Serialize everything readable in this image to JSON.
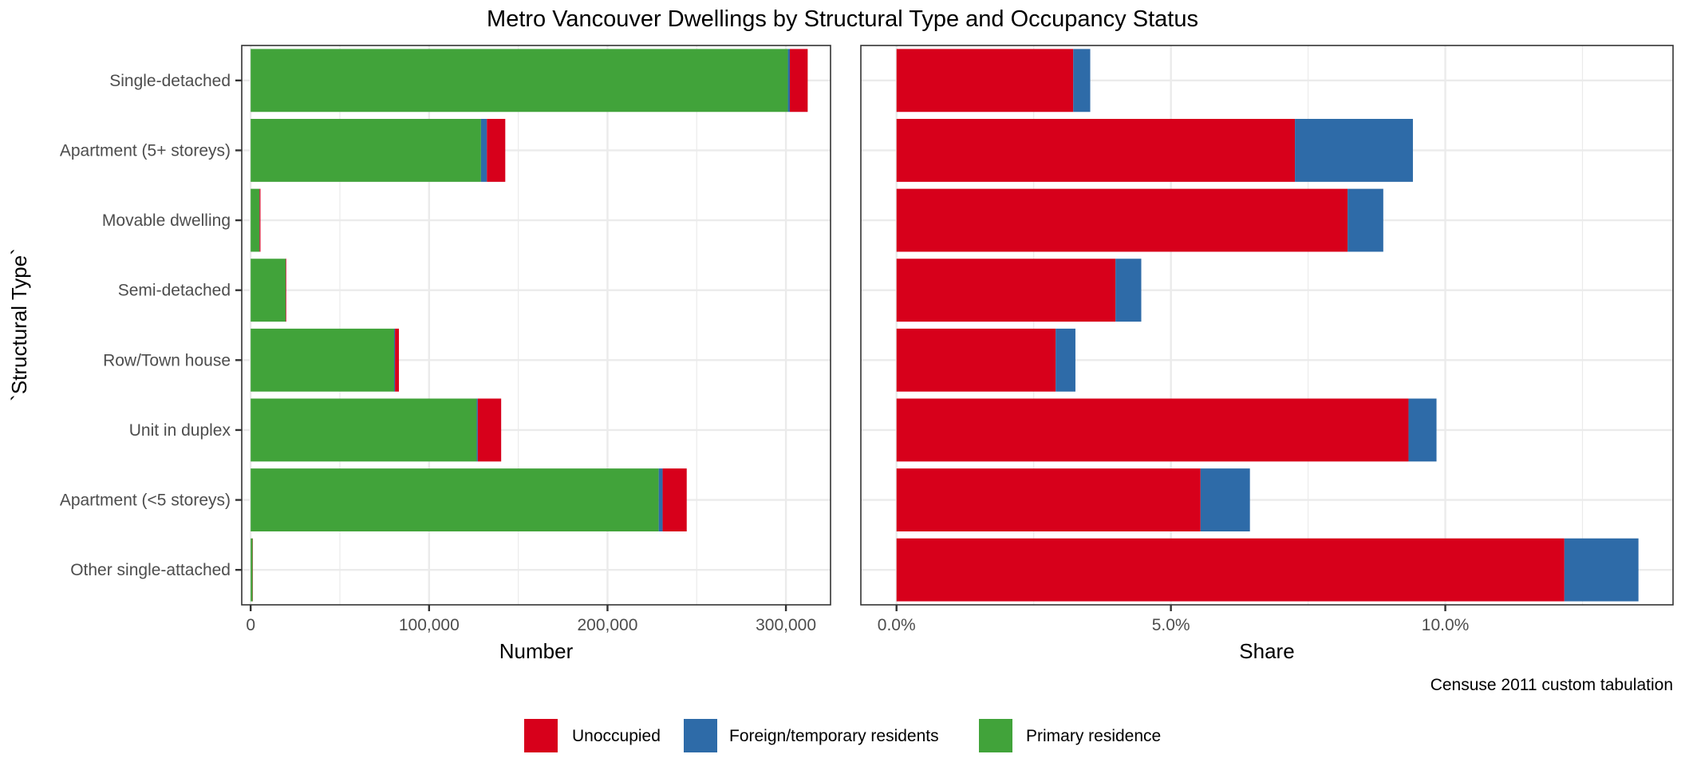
{
  "chart_data": {
    "type": "bar",
    "orientation": "horizontal",
    "stacked": true,
    "title": "Metro Vancouver Dwellings by Structural Type and Occupancy Status",
    "ylabel": "`Structural Type`",
    "caption": "Censuse 2011 custom tabulation",
    "categories": [
      "Single-detached",
      "Apartment (5+ storeys)",
      "Movable dwelling",
      "Semi-detached",
      "Row/Town house",
      "Unit in duplex",
      "Apartment (<5 storeys)",
      "Other single-attached"
    ],
    "legend": {
      "position": "bottom",
      "items": [
        {
          "name": "Unoccupied",
          "color": "#D7001B"
        },
        {
          "name": "Foreign/temporary residents",
          "color": "#2E6BA8"
        },
        {
          "name": "Primary residence",
          "color": "#41A33A"
        }
      ]
    },
    "panels": [
      {
        "name": "number",
        "xlabel": "Number",
        "xlim": [
          -5000,
          325000
        ],
        "xticks": [
          0,
          100000,
          200000,
          300000
        ],
        "xtick_labels": [
          "0",
          "100,000",
          "200,000",
          "300,000"
        ],
        "minor_xticks": [
          50000,
          150000,
          250000
        ],
        "stack_order": [
          "Primary residence",
          "Foreign/temporary residents",
          "Unoccupied"
        ],
        "series": [
          {
            "name": "Primary residence",
            "values": [
              301100,
              129100,
              4900,
              19600,
              80400,
              126700,
              228700,
              1100
            ]
          },
          {
            "name": "Foreign/temporary residents",
            "values": [
              1100,
              3300,
              100,
              100,
              500,
              600,
              2200,
              20
            ]
          },
          {
            "name": "Unoccupied",
            "values": [
              10000,
              10300,
              500,
              300,
              2200,
              13100,
              13500,
              150
            ]
          }
        ]
      },
      {
        "name": "share",
        "xlabel": "Share",
        "xlim": [
          -0.0065,
          0.1415
        ],
        "xticks": [
          0.0,
          0.05,
          0.1
        ],
        "xtick_labels": [
          "0.0%",
          "5.0%",
          "10.0%"
        ],
        "minor_xticks": [
          0.025,
          0.075,
          0.125
        ],
        "stack_order": [
          "Unoccupied",
          "Foreign/temporary residents"
        ],
        "series": [
          {
            "name": "Unoccupied",
            "values": [
              0.0322,
              0.0726,
              0.0822,
              0.0399,
              0.029,
              0.0933,
              0.0554,
              0.1217
            ]
          },
          {
            "name": "Foreign/temporary residents",
            "values": [
              0.0031,
              0.0215,
              0.0065,
              0.0047,
              0.0036,
              0.0051,
              0.009,
              0.0135
            ]
          }
        ]
      }
    ]
  }
}
